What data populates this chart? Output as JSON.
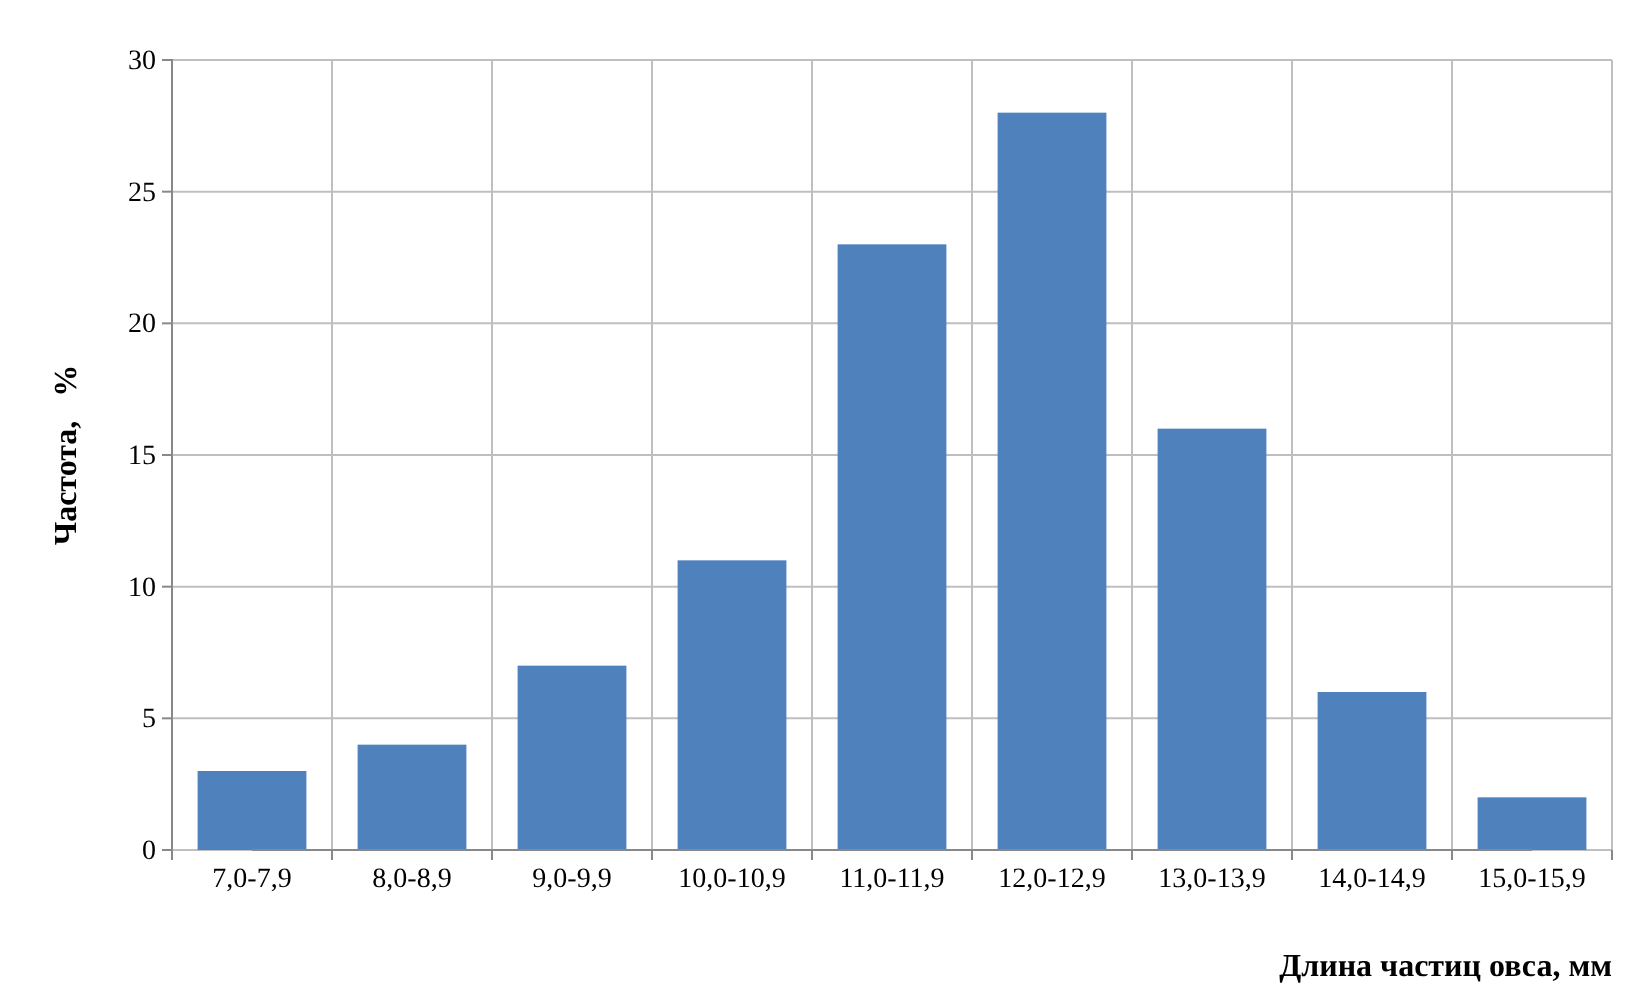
{
  "chart_data": {
    "type": "bar",
    "xlabel": "Длина частиц овса, мм",
    "ylabel": "Частота,   %",
    "categories": [
      "7,0-7,9",
      "8,0-8,9",
      "9,0-9,9",
      "10,0-10,9",
      "11,0-11,9",
      "12,0-12,9",
      "13,0-13,9",
      "14,0-14,9",
      "15,0-15,9"
    ],
    "values": [
      3,
      4,
      7,
      11,
      23,
      28,
      16,
      6,
      2
    ],
    "color": "#4f81bd",
    "ylim": [
      0,
      30
    ],
    "yticks": [
      0,
      5,
      10,
      15,
      20,
      25,
      30
    ],
    "grid": true
  }
}
